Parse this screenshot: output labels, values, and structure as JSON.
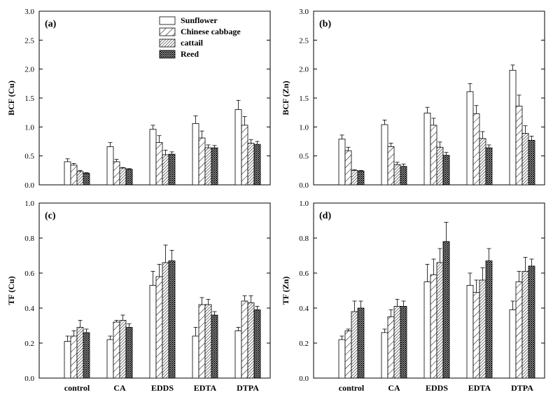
{
  "figure": {
    "series_names": [
      "Sunflower",
      "Chinese cabbage",
      "cattail",
      "Reed"
    ]
  },
  "chart_data": [
    {
      "type": "bar",
      "panel_label": "(a)",
      "ylabel": "BCF (Cu)",
      "categories": [
        "control",
        "CA",
        "EDDS",
        "EDTA",
        "DTPA"
      ],
      "ylim": [
        0,
        3.0
      ],
      "yticks": [
        "0.0",
        "0.5",
        "1.0",
        "1.5",
        "2.0",
        "2.5",
        "3.0"
      ],
      "show_category_labels": false,
      "legend": "top-right",
      "series": [
        {
          "name": "Sunflower",
          "values": [
            0.4,
            0.66,
            0.96,
            1.06,
            1.3
          ],
          "errors": [
            0.05,
            0.07,
            0.07,
            0.13,
            0.16
          ]
        },
        {
          "name": "Chinese cabbage",
          "values": [
            0.34,
            0.4,
            0.73,
            0.81,
            1.03
          ],
          "errors": [
            0.03,
            0.04,
            0.12,
            0.12,
            0.15
          ]
        },
        {
          "name": "cattail",
          "values": [
            0.23,
            0.29,
            0.52,
            0.64,
            0.72
          ],
          "errors": [
            0.02,
            0.01,
            0.08,
            0.05,
            0.06
          ]
        },
        {
          "name": "Reed",
          "values": [
            0.2,
            0.27,
            0.53,
            0.64,
            0.7
          ],
          "errors": [
            0.01,
            0.01,
            0.04,
            0.04,
            0.05
          ]
        }
      ]
    },
    {
      "type": "bar",
      "panel_label": "(b)",
      "ylabel": "BCF (Zn)",
      "categories": [
        "control",
        "CA",
        "EDDS",
        "EDTA",
        "DTPA"
      ],
      "ylim": [
        0,
        3.0
      ],
      "yticks": [
        "0.0",
        "0.5",
        "1.0",
        "1.5",
        "2.0",
        "2.5",
        "3.0"
      ],
      "show_category_labels": false,
      "series": [
        {
          "name": "Sunflower",
          "values": [
            0.79,
            1.04,
            1.24,
            1.61,
            1.98
          ],
          "errors": [
            0.07,
            0.08,
            0.1,
            0.14,
            0.09
          ]
        },
        {
          "name": "Chinese cabbage",
          "values": [
            0.59,
            0.66,
            1.03,
            1.23,
            1.36
          ],
          "errors": [
            0.06,
            0.06,
            0.12,
            0.14,
            0.19
          ]
        },
        {
          "name": "cattail",
          "values": [
            0.25,
            0.35,
            0.65,
            0.8,
            0.89
          ],
          "errors": [
            0.01,
            0.04,
            0.09,
            0.12,
            0.13
          ]
        },
        {
          "name": "Reed",
          "values": [
            0.24,
            0.32,
            0.51,
            0.64,
            0.77
          ],
          "errors": [
            0.01,
            0.04,
            0.05,
            0.05,
            0.07
          ]
        }
      ]
    },
    {
      "type": "bar",
      "panel_label": "(c)",
      "ylabel": "TF (Cu)",
      "categories": [
        "control",
        "CA",
        "EDDS",
        "EDTA",
        "DTPA"
      ],
      "ylim": [
        0,
        1.0
      ],
      "yticks": [
        "0.0",
        "0.2",
        "0.4",
        "0.6",
        "0.8",
        "1.0"
      ],
      "show_category_labels": true,
      "series": [
        {
          "name": "Sunflower",
          "values": [
            0.21,
            0.22,
            0.53,
            0.24,
            0.27
          ],
          "errors": [
            0.03,
            0.02,
            0.08,
            0.05,
            0.02
          ]
        },
        {
          "name": "Chinese cabbage",
          "values": [
            0.24,
            0.32,
            0.58,
            0.42,
            0.44
          ],
          "errors": [
            0.03,
            0.01,
            0.07,
            0.04,
            0.03
          ]
        },
        {
          "name": "cattail",
          "values": [
            0.29,
            0.33,
            0.66,
            0.42,
            0.43
          ],
          "errors": [
            0.04,
            0.03,
            0.1,
            0.03,
            0.04
          ]
        },
        {
          "name": "Reed",
          "values": [
            0.26,
            0.29,
            0.67,
            0.36,
            0.39
          ],
          "errors": [
            0.02,
            0.02,
            0.06,
            0.02,
            0.02
          ]
        }
      ]
    },
    {
      "type": "bar",
      "panel_label": "(d)",
      "ylabel": "TF (Zn)",
      "categories": [
        "control",
        "CA",
        "EDDS",
        "EDTA",
        "DTPA"
      ],
      "ylim": [
        0,
        1.0
      ],
      "yticks": [
        "0.0",
        "0.2",
        "0.4",
        "0.6",
        "0.8",
        "1.0"
      ],
      "show_category_labels": true,
      "series": [
        {
          "name": "Sunflower",
          "values": [
            0.22,
            0.26,
            0.55,
            0.53,
            0.39
          ],
          "errors": [
            0.02,
            0.02,
            0.1,
            0.07,
            0.05
          ]
        },
        {
          "name": "Chinese cabbage",
          "values": [
            0.27,
            0.35,
            0.59,
            0.49,
            0.55
          ],
          "errors": [
            0.01,
            0.04,
            0.09,
            0.07,
            0.06
          ]
        },
        {
          "name": "cattail",
          "values": [
            0.38,
            0.41,
            0.66,
            0.56,
            0.61
          ],
          "errors": [
            0.06,
            0.04,
            0.08,
            0.07,
            0.08
          ]
        },
        {
          "name": "Reed",
          "values": [
            0.4,
            0.41,
            0.78,
            0.67,
            0.64
          ],
          "errors": [
            0.04,
            0.03,
            0.11,
            0.07,
            0.04
          ]
        }
      ]
    }
  ]
}
